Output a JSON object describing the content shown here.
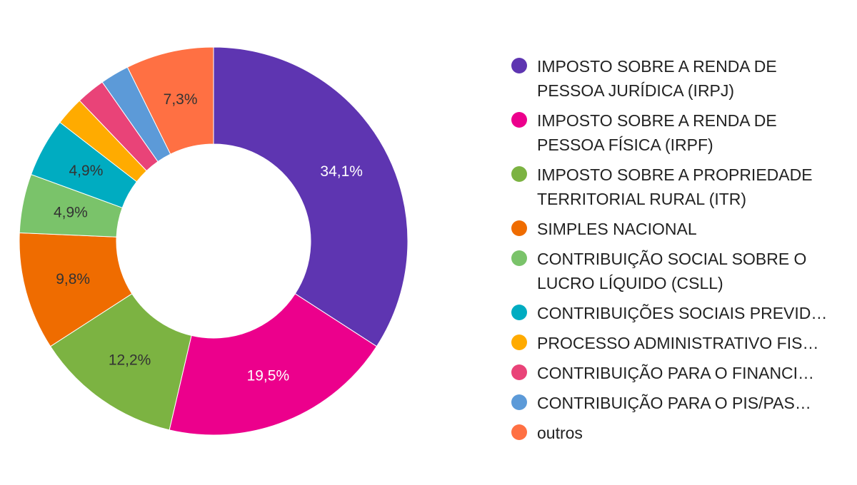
{
  "chart_data": {
    "type": "pie",
    "variant": "donut",
    "slices": [
      {
        "label": "IMPOSTO SOBRE A RENDA DE\nPESSOA JURÍDICA (IRPJ)",
        "value": 34.1,
        "value_label": "34,1%",
        "color": "#5e35b1",
        "label_color": "#ffffff"
      },
      {
        "label": "IMPOSTO SOBRE A RENDA DE\nPESSOA FÍSICA (IRPF)",
        "value": 19.5,
        "value_label": "19,5%",
        "color": "#ec008c",
        "label_color": "#ffffff"
      },
      {
        "label": "IMPOSTO SOBRE A PROPRIEDADE\nTERRITORIAL RURAL (ITR)",
        "value": 12.2,
        "value_label": "12,2%",
        "color": "#7cb342",
        "label_color": "#333333"
      },
      {
        "label": "SIMPLES NACIONAL",
        "value": 9.8,
        "value_label": "9,8%",
        "color": "#ef6c00",
        "label_color": "#333333"
      },
      {
        "label": "CONTRIBUIÇÃO SOCIAL SOBRE O\nLUCRO LÍQUIDO (CSLL)",
        "value": 4.9,
        "value_label": "4,9%",
        "color": "#7ac36a",
        "label_color": "#333333"
      },
      {
        "label": "CONTRIBUIÇÕES SOCIAIS PREVID…",
        "value": 4.9,
        "value_label": "4,9%",
        "color": "#00acc1",
        "label_color": "#333333"
      },
      {
        "label": "PROCESSO ADMINISTRATIVO FIS…",
        "value": 2.4,
        "value_label": "",
        "color": "#ffab00",
        "label_color": "#333333"
      },
      {
        "label": "CONTRIBUIÇÃO PARA O FINANCI…",
        "value": 2.4,
        "value_label": "",
        "color": "#e94378",
        "label_color": "#333333"
      },
      {
        "label": "CONTRIBUIÇÃO PARA O PIS/PAS…",
        "value": 2.4,
        "value_label": "",
        "color": "#5c9ad8",
        "label_color": "#333333"
      },
      {
        "label": "outros",
        "value": 7.3,
        "value_label": "7,3%",
        "color": "#ff7043",
        "label_color": "#333333"
      }
    ],
    "legend_position": "right"
  }
}
